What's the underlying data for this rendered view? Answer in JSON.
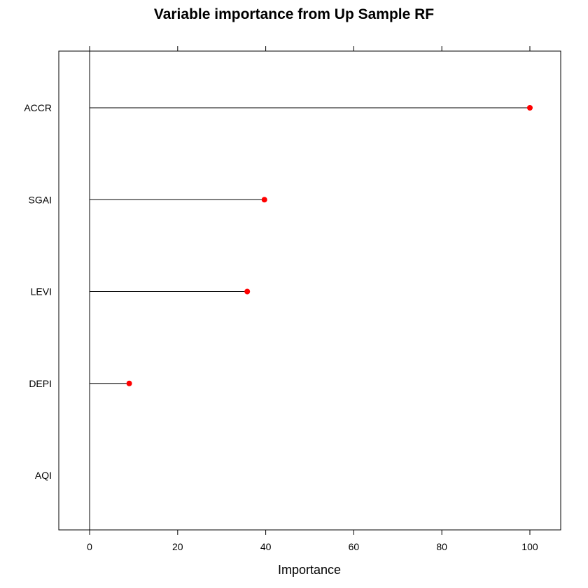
{
  "chart_data": {
    "type": "dotplot",
    "title": "Variable importance from Up Sample RF",
    "xlabel": "Importance",
    "ylabel": "",
    "xlim": [
      -7,
      107
    ],
    "x_ticks": [
      0,
      20,
      40,
      60,
      80,
      100
    ],
    "x_tick_labels": [
      "0",
      "20",
      "40",
      "60",
      "80",
      "100"
    ],
    "categories": [
      "ACCR",
      "SGAI",
      "LEVI",
      "DEPI",
      "AQI"
    ],
    "values": [
      100,
      39.7,
      35.8,
      9.0,
      0
    ],
    "point_color": "#ff0000",
    "line_color": "#000000",
    "grid": false,
    "legend": "none"
  }
}
